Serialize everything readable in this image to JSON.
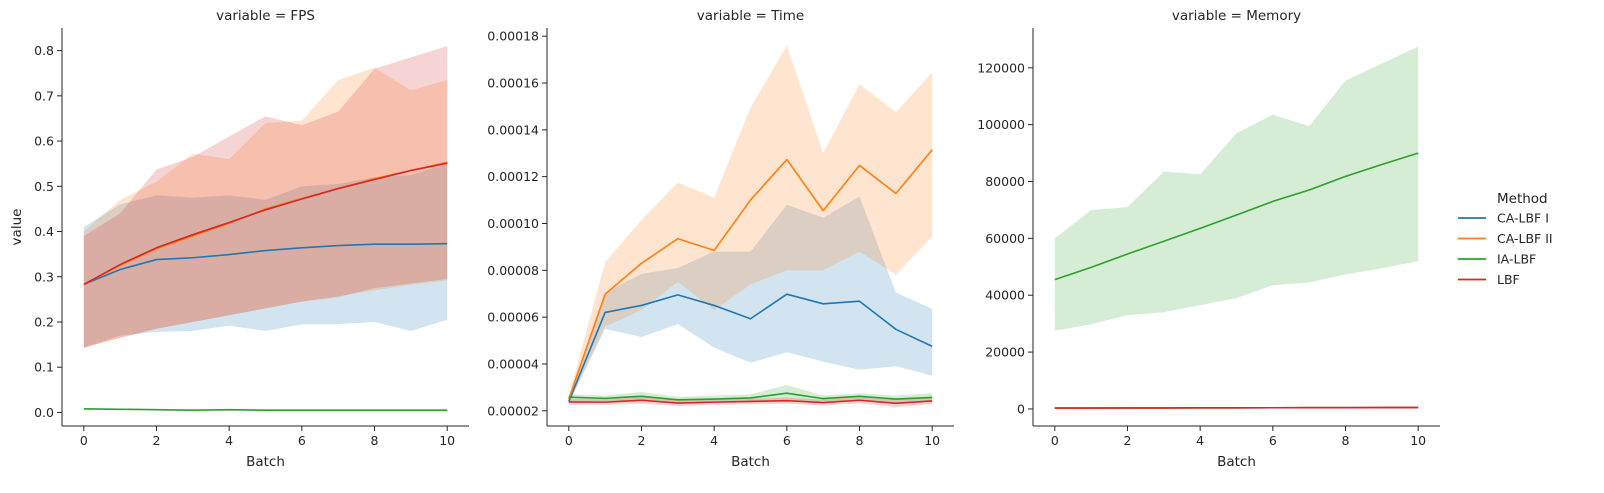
{
  "chart_data": [
    {
      "type": "line",
      "title": "variable = FPS",
      "xlabel": "Batch",
      "ylabel": "value",
      "x": [
        0,
        1,
        2,
        3,
        4,
        5,
        6,
        7,
        8,
        9,
        10
      ],
      "xlim": [
        -0.6,
        10.6
      ],
      "ylim": [
        -0.03,
        0.85
      ],
      "xticks": [
        0,
        2,
        4,
        6,
        8,
        10
      ],
      "yticks": [
        0,
        0.1,
        0.2,
        0.3,
        0.4,
        0.5,
        0.6,
        0.7,
        0.8
      ],
      "ytick_labels": [
        "0.0",
        "0.1",
        "0.2",
        "0.3",
        "0.4",
        "0.5",
        "0.6",
        "0.7",
        "0.8"
      ],
      "series": [
        {
          "name": "CA-LBF I",
          "color": "#1f77b4",
          "values": [
            0.283,
            0.316,
            0.338,
            0.342,
            0.349,
            0.358,
            0.364,
            0.369,
            0.372,
            0.372,
            0.373
          ],
          "lower": [
            0.143,
            0.17,
            0.178,
            0.18,
            0.192,
            0.18,
            0.195,
            0.195,
            0.2,
            0.18,
            0.205
          ],
          "upper": [
            0.41,
            0.46,
            0.48,
            0.475,
            0.48,
            0.47,
            0.5,
            0.505,
            0.52,
            0.525,
            0.55
          ]
        },
        {
          "name": "CA-LBF II",
          "color": "#ff7f0e",
          "values": [
            0.283,
            0.325,
            0.362,
            0.39,
            0.418,
            0.45,
            0.473,
            0.495,
            0.517,
            0.535,
            0.553
          ],
          "lower": [
            0.143,
            0.165,
            0.185,
            0.2,
            0.215,
            0.23,
            0.245,
            0.257,
            0.27,
            0.282,
            0.292
          ],
          "upper": [
            0.4,
            0.47,
            0.51,
            0.572,
            0.56,
            0.64,
            0.645,
            0.735,
            0.762,
            0.712,
            0.735
          ]
        },
        {
          "name": "IA-LBF",
          "color": "#2ca02c",
          "values": [
            0.008,
            0.007,
            0.006,
            0.005,
            0.006,
            0.005,
            0.005,
            0.005,
            0.005,
            0.005,
            0.005
          ],
          "lower": [
            0.007,
            0.006,
            0.005,
            0.004,
            0.005,
            0.004,
            0.004,
            0.004,
            0.004,
            0.004,
            0.004
          ],
          "upper": [
            0.009,
            0.008,
            0.007,
            0.006,
            0.007,
            0.006,
            0.006,
            0.006,
            0.006,
            0.006,
            0.006
          ]
        },
        {
          "name": "LBF",
          "color": "#d62728",
          "values": [
            0.283,
            0.327,
            0.364,
            0.393,
            0.42,
            0.448,
            0.472,
            0.495,
            0.515,
            0.535,
            0.551
          ],
          "lower": [
            0.143,
            0.165,
            0.185,
            0.2,
            0.215,
            0.23,
            0.245,
            0.255,
            0.275,
            0.285,
            0.295
          ],
          "upper": [
            0.39,
            0.44,
            0.537,
            0.565,
            0.61,
            0.655,
            0.635,
            0.665,
            0.76,
            0.785,
            0.81
          ]
        }
      ]
    },
    {
      "type": "line",
      "title": "variable = Time",
      "xlabel": "Batch",
      "ylabel": "",
      "x": [
        0,
        1,
        2,
        3,
        4,
        5,
        6,
        7,
        8,
        9,
        10
      ],
      "xlim": [
        -0.6,
        10.6
      ],
      "ylim": [
        1.35e-05,
        0.0001835
      ],
      "xticks": [
        0,
        2,
        4,
        6,
        8,
        10
      ],
      "yticks": [
        2e-05,
        4e-05,
        6e-05,
        8e-05,
        0.0001,
        0.00012,
        0.00014,
        0.00016,
        0.00018
      ],
      "ytick_labels": [
        "0.00002",
        "0.00004",
        "0.00006",
        "0.00008",
        "0.00010",
        "0.00012",
        "0.00014",
        "0.00016",
        "0.00018"
      ],
      "series": [
        {
          "name": "CA-LBF I",
          "color": "#1f77b4",
          "values": [
            2.4e-05,
            6.2e-05,
            6.5e-05,
            6.95e-05,
            6.5e-05,
            5.93e-05,
            6.98e-05,
            6.57e-05,
            6.68e-05,
            5.48e-05,
            4.75e-05
          ],
          "lower": [
            2.3e-05,
            5.5e-05,
            5.15e-05,
            5.7e-05,
            4.7e-05,
            4.05e-05,
            4.5e-05,
            4.1e-05,
            3.75e-05,
            3.9e-05,
            3.5e-05
          ],
          "upper": [
            2.5e-05,
            7.05e-05,
            7.85e-05,
            8.1e-05,
            8.8e-05,
            8.8e-05,
            0.000108,
            0.0001025,
            0.0001115,
            7.05e-05,
            6.35e-05
          ]
        },
        {
          "name": "CA-LBF II",
          "color": "#ff7f0e",
          "values": [
            2.5e-05,
            6.98e-05,
            8.3e-05,
            9.35e-05,
            8.85e-05,
            0.00011,
            0.0001273,
            0.0001055,
            0.0001248,
            0.0001128,
            0.0001315
          ],
          "lower": [
            2.35e-05,
            5.6e-05,
            6.3e-05,
            7.5e-05,
            6.3e-05,
            7.4e-05,
            8e-05,
            8e-05,
            8.8e-05,
            7.8e-05,
            9.45e-05
          ],
          "upper": [
            2.65e-05,
            8.35e-05,
            0.0001015,
            0.0001175,
            0.000111,
            0.0001495,
            0.000176,
            0.00013,
            0.0001595,
            0.0001475,
            0.0001645
          ]
        },
        {
          "name": "IA-LBF",
          "color": "#2ca02c",
          "values": [
            2.58e-05,
            2.53e-05,
            2.62e-05,
            2.47e-05,
            2.5e-05,
            2.55e-05,
            2.75e-05,
            2.52e-05,
            2.62e-05,
            2.5e-05,
            2.57e-05
          ],
          "lower": [
            2.4e-05,
            2.4e-05,
            2.45e-05,
            2.35e-05,
            2.35e-05,
            2.4e-05,
            2.45e-05,
            2.4e-05,
            2.45e-05,
            2.35e-05,
            2.4e-05
          ],
          "upper": [
            2.7e-05,
            2.65e-05,
            2.8e-05,
            2.6e-05,
            2.65e-05,
            2.7e-05,
            3.1e-05,
            2.65e-05,
            2.75e-05,
            2.65e-05,
            2.75e-05
          ]
        },
        {
          "name": "LBF",
          "color": "#d62728",
          "values": [
            2.38e-05,
            2.37e-05,
            2.45e-05,
            2.33e-05,
            2.37e-05,
            2.4e-05,
            2.43e-05,
            2.35e-05,
            2.45e-05,
            2.32e-05,
            2.42e-05
          ],
          "lower": [
            2.25e-05,
            2.25e-05,
            2.3e-05,
            2.2e-05,
            2.25e-05,
            2.28e-05,
            2.3e-05,
            2.22e-05,
            2.32e-05,
            2.15e-05,
            2.28e-05
          ],
          "upper": [
            2.5e-05,
            2.5e-05,
            2.58e-05,
            2.45e-05,
            2.5e-05,
            2.52e-05,
            2.56e-05,
            2.48e-05,
            2.58e-05,
            2.48e-05,
            2.56e-05
          ]
        }
      ]
    },
    {
      "type": "line",
      "title": "variable = Memory",
      "xlabel": "Batch",
      "ylabel": "",
      "x": [
        0,
        1,
        2,
        3,
        4,
        5,
        6,
        7,
        8,
        9,
        10
      ],
      "xlim": [
        -0.6,
        10.6
      ],
      "ylim": [
        -6000,
        134000
      ],
      "xticks": [
        0,
        2,
        4,
        6,
        8,
        10
      ],
      "yticks": [
        0,
        20000,
        40000,
        60000,
        80000,
        100000,
        120000
      ],
      "ytick_labels": [
        "0",
        "20000",
        "40000",
        "60000",
        "80000",
        "100000",
        "120000"
      ],
      "series": [
        {
          "name": "CA-LBF I",
          "color": "#1f77b4",
          "values": [
            300,
            320,
            340,
            360,
            380,
            400,
            420,
            440,
            460,
            480,
            500
          ],
          "lower": [
            250,
            270,
            290,
            310,
            330,
            350,
            370,
            390,
            410,
            430,
            450
          ],
          "upper": [
            350,
            370,
            390,
            410,
            430,
            450,
            470,
            490,
            510,
            530,
            550
          ]
        },
        {
          "name": "CA-LBF II",
          "color": "#ff7f0e",
          "values": [
            300,
            320,
            340,
            360,
            380,
            400,
            420,
            440,
            460,
            480,
            500
          ],
          "lower": [
            250,
            270,
            290,
            310,
            330,
            350,
            370,
            390,
            410,
            430,
            450
          ],
          "upper": [
            350,
            370,
            390,
            410,
            430,
            450,
            470,
            490,
            510,
            530,
            550
          ]
        },
        {
          "name": "IA-LBF",
          "color": "#2ca02c",
          "values": [
            45500,
            49800,
            54500,
            59000,
            63500,
            68200,
            73000,
            77000,
            81800,
            86000,
            90000
          ],
          "lower": [
            27500,
            29800,
            33000,
            34000,
            36500,
            39000,
            43500,
            44500,
            47300,
            49500,
            52000
          ],
          "upper": [
            60000,
            70000,
            71000,
            83500,
            82500,
            97000,
            103500,
            99500,
            115500,
            121500,
            127500
          ]
        },
        {
          "name": "LBF",
          "color": "#d62728",
          "values": [
            300,
            320,
            340,
            360,
            380,
            400,
            420,
            440,
            460,
            480,
            500
          ],
          "lower": [
            250,
            270,
            290,
            310,
            330,
            350,
            370,
            390,
            410,
            430,
            450
          ],
          "upper": [
            350,
            370,
            390,
            410,
            430,
            450,
            470,
            490,
            510,
            530,
            550
          ]
        }
      ]
    }
  ],
  "legend": {
    "title": "Method",
    "placement": "right",
    "items": [
      {
        "label": "CA-LBF I",
        "color": "#1f77b4"
      },
      {
        "label": "CA-LBF II",
        "color": "#ff7f0e"
      },
      {
        "label": "IA-LBF",
        "color": "#2ca02c"
      },
      {
        "label": "LBF",
        "color": "#d62728"
      }
    ]
  }
}
